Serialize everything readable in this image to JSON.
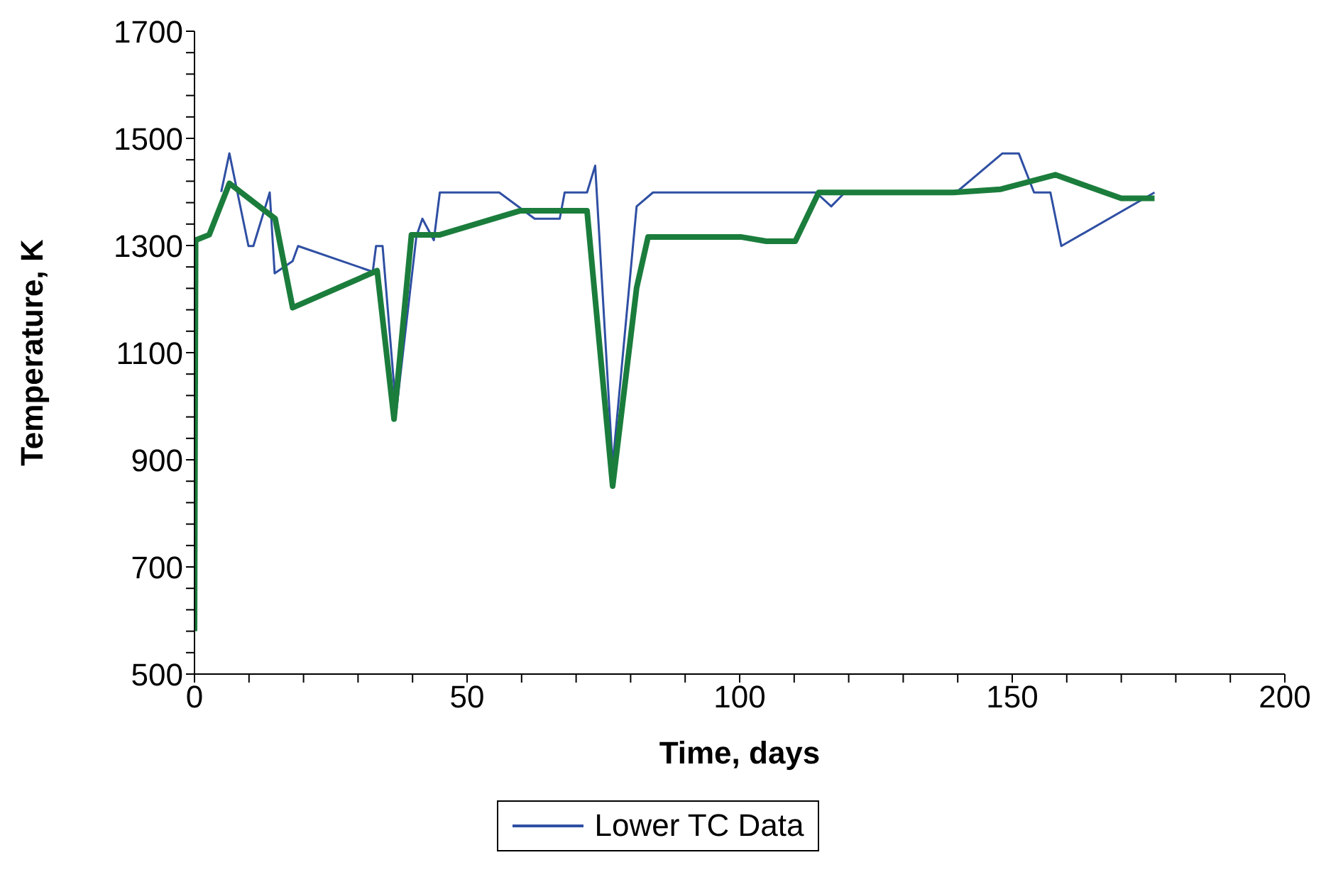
{
  "chart_data": {
    "type": "line",
    "xlabel": "Time, days",
    "ylabel": "Temperature, K",
    "xlim": [
      0,
      200
    ],
    "ylim": [
      500,
      1700
    ],
    "xticks": [
      0,
      {
        "value": 10,
        "label": null
      },
      {
        "value": 20,
        "label": null
      },
      {
        "value": 30,
        "label": null
      },
      {
        "value": 40,
        "label": null
      },
      50,
      {
        "value": 60,
        "label": null
      },
      {
        "value": 70,
        "label": null
      },
      {
        "value": 80,
        "label": null
      },
      {
        "value": 90,
        "label": null
      },
      100,
      {
        "value": 110,
        "label": null
      },
      {
        "value": 120,
        "label": null
      },
      {
        "value": 130,
        "label": null
      },
      {
        "value": 140,
        "label": null
      },
      150,
      {
        "value": 160,
        "label": null
      },
      {
        "value": 170,
        "label": null
      },
      {
        "value": 180,
        "label": null
      },
      {
        "value": 190,
        "label": null
      },
      200
    ],
    "yticks": [
      500,
      {
        "value": 540,
        "label": null
      },
      {
        "value": 580,
        "label": null
      },
      {
        "value": 620,
        "label": null
      },
      {
        "value": 660,
        "label": null
      },
      700,
      {
        "value": 740,
        "label": null
      },
      {
        "value": 780,
        "label": null
      },
      {
        "value": 820,
        "label": null
      },
      {
        "value": 860,
        "label": null
      },
      900,
      {
        "value": 940,
        "label": null
      },
      {
        "value": 980,
        "label": null
      },
      {
        "value": 1020,
        "label": null
      },
      {
        "value": 1060,
        "label": null
      },
      1100,
      {
        "value": 1140,
        "label": null
      },
      {
        "value": 1180,
        "label": null
      },
      {
        "value": 1220,
        "label": null
      },
      {
        "value": 1260,
        "label": null
      },
      1300,
      {
        "value": 1340,
        "label": null
      },
      {
        "value": 1380,
        "label": null
      },
      {
        "value": 1420,
        "label": null
      },
      {
        "value": 1460,
        "label": null
      },
      1500,
      {
        "value": 1540,
        "label": null
      },
      {
        "value": 1580,
        "label": null
      },
      {
        "value": 1620,
        "label": null
      },
      {
        "value": 1660,
        "label": null
      },
      1700
    ],
    "grid": false,
    "legend": "bottom",
    "marker": "none",
    "line_style": "solid",
    "series": [
      {
        "name": "Lower TC Data",
        "color": "#2f4fa3",
        "x": [
          4.9,
          6.4,
          9.9,
          10.8,
          13.8,
          14.7,
          18,
          19,
          32.7,
          33.3,
          34.5,
          37,
          40.7,
          41.8,
          43.9,
          45,
          55.9,
          62.4,
          67,
          67.9,
          72,
          73.5,
          76.7,
          81.1,
          84.1,
          114,
          116.8,
          119.3,
          139.7,
          148.2,
          151.2,
          154,
          157,
          159,
          176.1
        ],
        "values": [
          1400,
          1472,
          1299,
          1299,
          1399,
          1248,
          1271,
          1299,
          1251,
          1299,
          1299,
          990,
          1317,
          1350,
          1310,
          1399,
          1399,
          1350,
          1350,
          1399,
          1399,
          1449,
          890,
          1373,
          1399,
          1399,
          1373,
          1399,
          1399,
          1472,
          1472,
          1399,
          1399,
          1299,
          1399
        ]
      },
      {
        "color": "#1b7d3c",
        "x": [
          0,
          0.2,
          2.7,
          6.4,
          14.8,
          18,
          33.5,
          36.6,
          39.8,
          45,
          59.8,
          72,
          76.7,
          81.1,
          83.2,
          100.2,
          104.9,
          110.2,
          114.5,
          139.2,
          147.9,
          157.9,
          170,
          176.1
        ],
        "values": [
          580,
          1310,
          1320,
          1416,
          1350,
          1184,
          1253,
          976,
          1320,
          1320,
          1365,
          1365,
          851,
          1221,
          1316,
          1316,
          1308,
          1308,
          1399,
          1399,
          1405,
          1432,
          1388,
          1388
        ]
      }
    ]
  }
}
